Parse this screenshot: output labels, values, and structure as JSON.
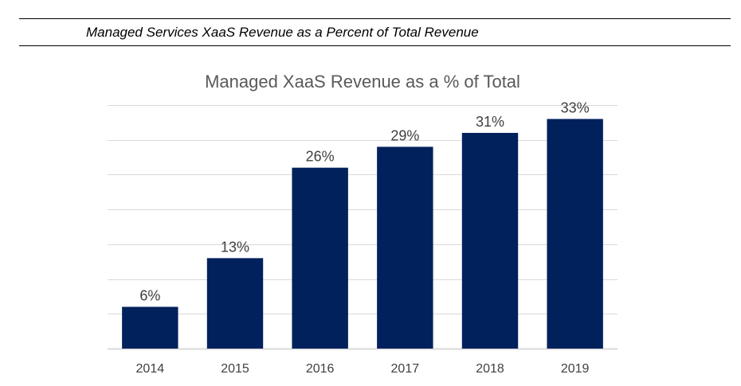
{
  "document": {
    "caption": "Managed Services XaaS Revenue as a Percent of Total Revenue"
  },
  "chart_data": {
    "type": "bar",
    "title": "Managed XaaS Revenue as a % of Total",
    "categories": [
      "2014",
      "2015",
      "2016",
      "2017",
      "2018",
      "2019"
    ],
    "values": [
      6,
      13,
      26,
      29,
      31,
      33
    ],
    "data_labels": [
      "6%",
      "13%",
      "26%",
      "29%",
      "31%",
      "33%"
    ],
    "xlabel": "",
    "ylabel": "",
    "ylim": [
      0,
      35
    ],
    "y_gridline_step": 5,
    "y_axis_labels_shown": false,
    "grid": true,
    "legend": "none",
    "colors": {
      "bar": "#00215C",
      "grid": "#D9D9D9",
      "title": "#595959",
      "label": "#404040"
    }
  }
}
